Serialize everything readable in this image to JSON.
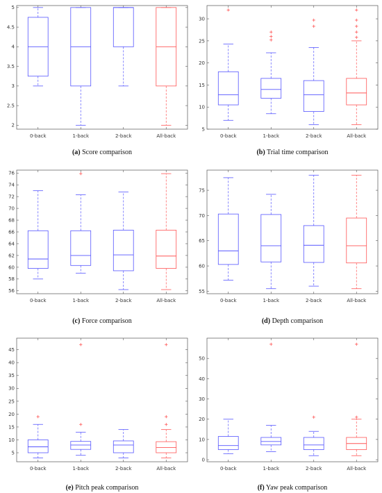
{
  "chart_data": [
    {
      "type": "box",
      "caption_letter": "(a)",
      "caption_text": "Score comparison",
      "categories": [
        "0-back",
        "1-back",
        "2-back",
        "All-back"
      ],
      "ylim": [
        1.9,
        5.05
      ],
      "yticks": [
        2,
        2.5,
        3,
        3.5,
        4,
        4.5,
        5
      ],
      "ytick_labels": [
        "2",
        "2.5",
        "3",
        "3.5",
        "4",
        "4.5",
        "5"
      ],
      "boxes": [
        {
          "q1": 3.25,
          "median": 4.0,
          "q3": 4.75,
          "whisker_low": 3.0,
          "whisker_high": 5.0,
          "outliers": [],
          "color": "#5555ff"
        },
        {
          "q1": 3.0,
          "median": 4.0,
          "q3": 5.0,
          "whisker_low": 2.0,
          "whisker_high": 5.0,
          "outliers": [],
          "color": "#5555ff"
        },
        {
          "q1": 4.0,
          "median": 5.0,
          "q3": 5.0,
          "whisker_low": 3.0,
          "whisker_high": 5.0,
          "outliers": [],
          "color": "#5555ff"
        },
        {
          "q1": 3.0,
          "median": 4.0,
          "q3": 5.0,
          "whisker_low": 2.0,
          "whisker_high": 5.0,
          "outliers": [],
          "color": "#ff5555"
        }
      ]
    },
    {
      "type": "box",
      "caption_letter": "(b)",
      "caption_text": "Trial time comparison",
      "categories": [
        "0-back",
        "1-back",
        "2-back",
        "All-back"
      ],
      "ylim": [
        5,
        33
      ],
      "yticks": [
        5,
        10,
        15,
        20,
        25,
        30
      ],
      "ytick_labels": [
        "5",
        "10",
        "15",
        "20",
        "25",
        "30"
      ],
      "boxes": [
        {
          "q1": 10.5,
          "median": 12.8,
          "q3": 18.0,
          "whisker_low": 7.0,
          "whisker_high": 24.3,
          "outliers": [
            32.0
          ],
          "color": "#5555ff"
        },
        {
          "q1": 12.0,
          "median": 14.0,
          "q3": 16.5,
          "whisker_low": 8.5,
          "whisker_high": 22.3,
          "outliers": [
            25.2,
            26.0,
            27.0
          ],
          "color": "#5555ff"
        },
        {
          "q1": 9.0,
          "median": 12.8,
          "q3": 16.0,
          "whisker_low": 6.0,
          "whisker_high": 23.5,
          "outliers": [
            28.3,
            29.7
          ],
          "color": "#5555ff"
        },
        {
          "q1": 10.5,
          "median": 13.2,
          "q3": 16.5,
          "whisker_low": 6.0,
          "whisker_high": 25.0,
          "outliers": [
            25.8,
            27.0,
            28.3,
            29.7,
            32.0
          ],
          "color": "#ff5555"
        }
      ]
    },
    {
      "type": "box",
      "caption_letter": "(c)",
      "caption_text": "Force comparison",
      "categories": [
        "0-back",
        "1-back",
        "2-back",
        "All-back"
      ],
      "ylim": [
        55.5,
        76.5
      ],
      "yticks": [
        56,
        58,
        60,
        62,
        64,
        66,
        68,
        70,
        72,
        74,
        76
      ],
      "ytick_labels": [
        "56",
        "58",
        "60",
        "62",
        "64",
        "66",
        "68",
        "70",
        "72",
        "74",
        "76"
      ],
      "boxes": [
        {
          "q1": 59.8,
          "median": 61.4,
          "q3": 66.2,
          "whisker_low": 58.0,
          "whisker_high": 73.0,
          "outliers": [],
          "color": "#5555ff"
        },
        {
          "q1": 60.3,
          "median": 62.0,
          "q3": 66.2,
          "whisker_low": 59.0,
          "whisker_high": 72.3,
          "outliers": [
            75.9
          ],
          "color": "#5555ff"
        },
        {
          "q1": 59.4,
          "median": 62.1,
          "q3": 66.3,
          "whisker_low": 56.2,
          "whisker_high": 72.8,
          "outliers": [],
          "color": "#5555ff"
        },
        {
          "q1": 59.8,
          "median": 61.9,
          "q3": 66.3,
          "whisker_low": 56.2,
          "whisker_high": 75.9,
          "outliers": [],
          "color": "#ff5555"
        }
      ]
    },
    {
      "type": "box",
      "caption_letter": "(d)",
      "caption_text": "Depth comparison",
      "categories": [
        "0-back",
        "1-back",
        "2-back",
        "All-back"
      ],
      "ylim": [
        54.5,
        79
      ],
      "yticks": [
        55,
        60,
        65,
        70,
        75
      ],
      "ytick_labels": [
        "55",
        "60",
        "65",
        "70",
        "75"
      ],
      "boxes": [
        {
          "q1": 60.3,
          "median": 63.0,
          "q3": 70.3,
          "whisker_low": 57.2,
          "whisker_high": 77.5,
          "outliers": [],
          "color": "#5555ff"
        },
        {
          "q1": 60.8,
          "median": 64.0,
          "q3": 70.2,
          "whisker_low": 55.5,
          "whisker_high": 74.2,
          "outliers": [],
          "color": "#5555ff"
        },
        {
          "q1": 60.7,
          "median": 64.1,
          "q3": 68.0,
          "whisker_low": 56.0,
          "whisker_high": 78.0,
          "outliers": [],
          "color": "#5555ff"
        },
        {
          "q1": 60.6,
          "median": 64.0,
          "q3": 69.5,
          "whisker_low": 55.5,
          "whisker_high": 78.0,
          "outliers": [],
          "color": "#ff5555"
        }
      ]
    },
    {
      "type": "box",
      "caption_letter": "(e)",
      "caption_text": "Pitch peak comparison",
      "categories": [
        "0-back",
        "1-back",
        "2-back",
        "All-back"
      ],
      "ylim": [
        1.5,
        49.5
      ],
      "yticks": [
        5,
        10,
        15,
        20,
        25,
        30,
        35,
        40,
        45
      ],
      "ytick_labels": [
        "5",
        "10",
        "15",
        "20",
        "25",
        "30",
        "35",
        "40",
        "45"
      ],
      "boxes": [
        {
          "q1": 5.0,
          "median": 7.3,
          "q3": 10.0,
          "whisker_low": 3.0,
          "whisker_high": 16.0,
          "outliers": [
            19.0
          ],
          "color": "#5555ff"
        },
        {
          "q1": 6.3,
          "median": 8.0,
          "q3": 9.4,
          "whisker_low": 4.0,
          "whisker_high": 13.0,
          "outliers": [
            16.0,
            47.0
          ],
          "color": "#5555ff"
        },
        {
          "q1": 5.0,
          "median": 8.0,
          "q3": 9.6,
          "whisker_low": 3.0,
          "whisker_high": 14.0,
          "outliers": [],
          "color": "#5555ff"
        },
        {
          "q1": 5.0,
          "median": 7.0,
          "q3": 9.3,
          "whisker_low": 3.0,
          "whisker_high": 14.0,
          "outliers": [
            16.0,
            19.0,
            47.0
          ],
          "color": "#ff5555"
        }
      ]
    },
    {
      "type": "box",
      "caption_letter": "(f)",
      "caption_text": "Yaw peak comparison",
      "categories": [
        "0-back",
        "1-back",
        "2-back",
        "All-back"
      ],
      "ylim": [
        -1,
        60
      ],
      "yticks": [
        0,
        10,
        20,
        30,
        40,
        50
      ],
      "ytick_labels": [
        "0",
        "10",
        "20",
        "30",
        "40",
        "50"
      ],
      "boxes": [
        {
          "q1": 5.0,
          "median": 7.0,
          "q3": 11.5,
          "whisker_low": 3.0,
          "whisker_high": 20.0,
          "outliers": [],
          "color": "#5555ff"
        },
        {
          "q1": 7.3,
          "median": 9.0,
          "q3": 11.0,
          "whisker_low": 4.0,
          "whisker_high": 17.0,
          "outliers": [
            57.0
          ],
          "color": "#5555ff"
        },
        {
          "q1": 5.0,
          "median": 7.3,
          "q3": 11.0,
          "whisker_low": 2.0,
          "whisker_high": 14.0,
          "outliers": [
            21.0
          ],
          "color": "#5555ff"
        },
        {
          "q1": 5.0,
          "median": 8.0,
          "q3": 11.0,
          "whisker_low": 2.0,
          "whisker_high": 20.0,
          "outliers": [
            21.0,
            57.0
          ],
          "color": "#ff5555"
        }
      ]
    }
  ]
}
